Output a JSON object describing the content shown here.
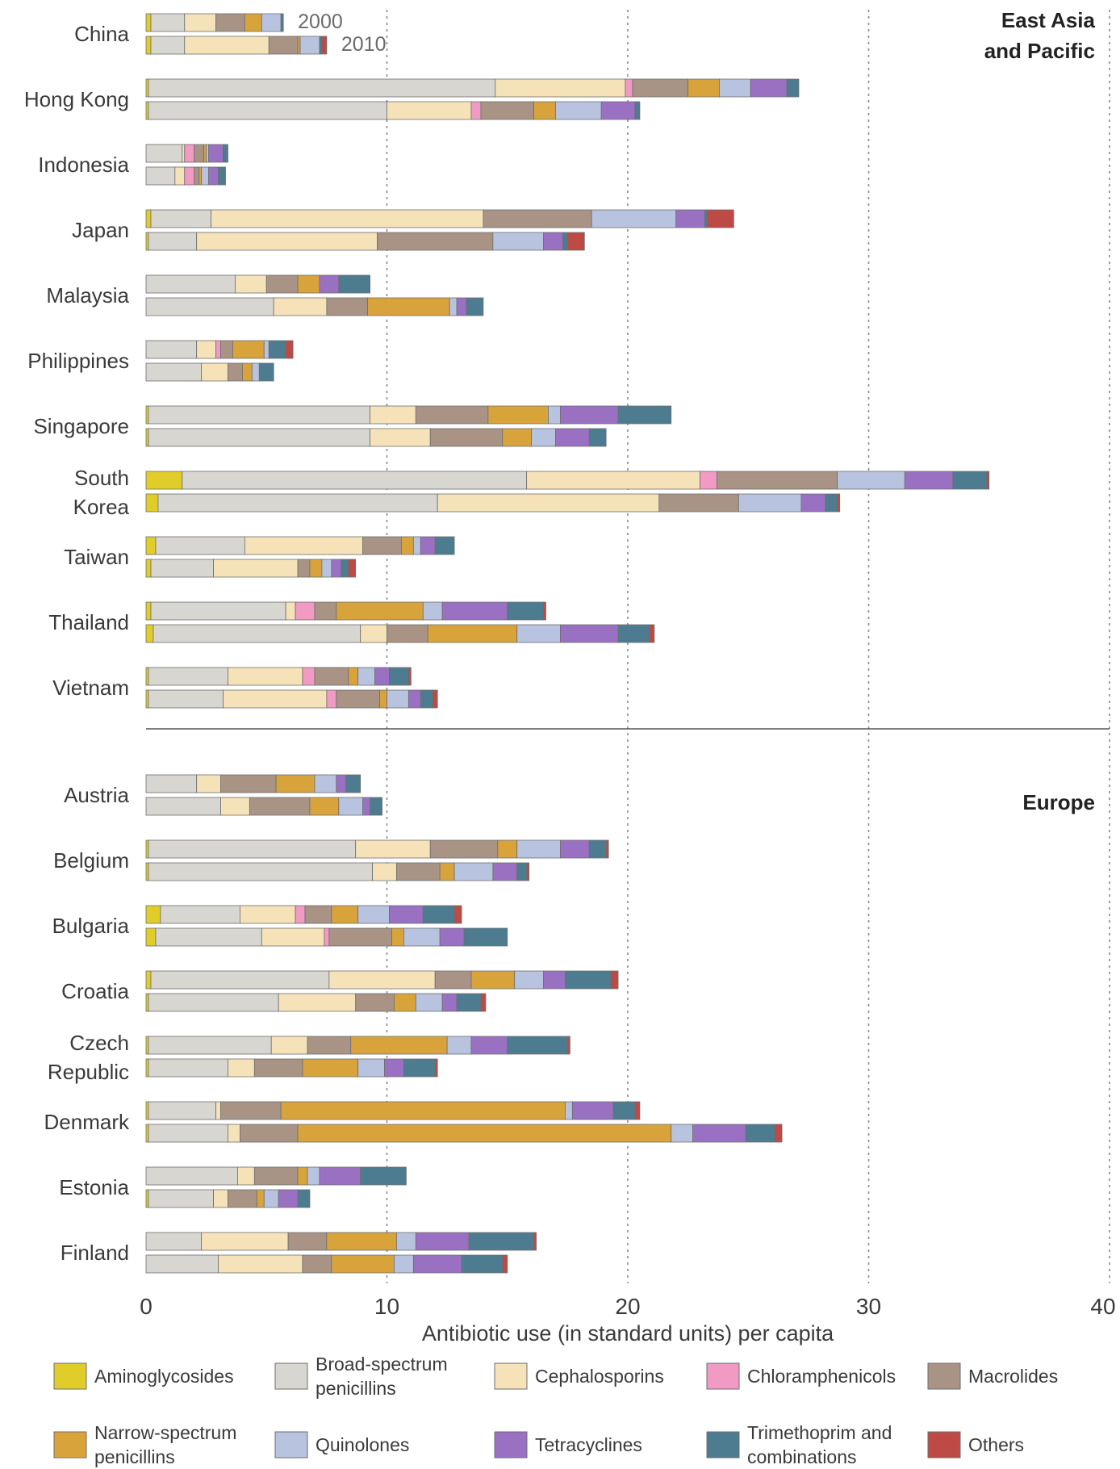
{
  "chart_data": {
    "type": "bar",
    "orientation": "horizontal",
    "stacked": true,
    "xlabel": "Antibiotic use (in standard units) per capita",
    "xlim": [
      0,
      40
    ],
    "xticks": [
      0,
      10,
      20,
      30,
      40
    ],
    "grid": "vertical dotted lines at 10, 20, 30, 40",
    "legend_position": "bottom",
    "year_labels": [
      "2000",
      "2010"
    ],
    "series": [
      {
        "name": "Aminoglycosides",
        "color": "#e0cd2a"
      },
      {
        "name": "Broad-spectrum penicillins",
        "color": "#d8d6d1"
      },
      {
        "name": "Cephalosporins",
        "color": "#f6e2b8"
      },
      {
        "name": "Chloramphenicols",
        "color": "#f19ac4"
      },
      {
        "name": "Macrolides",
        "color": "#a89385"
      },
      {
        "name": "Narrow-spectrum penicillins",
        "color": "#d9a33c"
      },
      {
        "name": "Quinolones",
        "color": "#b8c3df"
      },
      {
        "name": "Tetracyclines",
        "color": "#9a70c3"
      },
      {
        "name": "Trimethoprim and combinations",
        "color": "#4d7c90"
      },
      {
        "name": "Others",
        "color": "#bd4a44"
      }
    ],
    "groups": [
      {
        "region": "East Asia\nand Pacific",
        "countries": [
          {
            "name": "China",
            "bars": [
              [
                0.2,
                1.4,
                1.3,
                0,
                1.2,
                0.7,
                0.8,
                0,
                0.1,
                0
              ],
              [
                0.2,
                1.4,
                3.5,
                0,
                1.2,
                0.1,
                0.8,
                0,
                0.1,
                0.2
              ]
            ]
          },
          {
            "name": "Hong Kong",
            "bars": [
              [
                0.1,
                14.4,
                5.4,
                0.3,
                2.3,
                1.3,
                1.3,
                1.5,
                0.5,
                0
              ],
              [
                0.1,
                9.9,
                3.5,
                0.4,
                2.2,
                0.9,
                1.9,
                1.4,
                0.2,
                0
              ]
            ]
          },
          {
            "name": "Indonesia",
            "bars": [
              [
                0,
                1.5,
                0.1,
                0.4,
                0.4,
                0.1,
                0.1,
                0.6,
                0.2,
                0
              ],
              [
                0,
                1.2,
                0.4,
                0.4,
                0.2,
                0.1,
                0.3,
                0.4,
                0.3,
                0
              ]
            ]
          },
          {
            "name": "Japan",
            "bars": [
              [
                0.2,
                2.5,
                11.3,
                0,
                4.5,
                0,
                3.5,
                1.2,
                0.1,
                1.1
              ],
              [
                0.1,
                2.0,
                7.5,
                0,
                4.8,
                0,
                2.1,
                0.8,
                0.2,
                0.7
              ]
            ]
          },
          {
            "name": "Malaysia",
            "bars": [
              [
                0,
                3.7,
                1.3,
                0,
                1.3,
                0.9,
                0,
                0.8,
                1.3,
                0
              ],
              [
                0,
                5.3,
                2.2,
                0,
                1.7,
                3.4,
                0.3,
                0.4,
                0.7,
                0
              ]
            ]
          },
          {
            "name": "Philippines",
            "bars": [
              [
                0,
                2.1,
                0.8,
                0.2,
                0.5,
                1.3,
                0.2,
                0,
                0.7,
                0.3
              ],
              [
                0,
                2.3,
                1.1,
                0,
                0.6,
                0.4,
                0.3,
                0,
                0.6,
                0
              ]
            ]
          },
          {
            "name": "Singapore",
            "bars": [
              [
                0.1,
                9.2,
                1.9,
                0,
                3.0,
                2.5,
                0.5,
                2.4,
                2.2,
                0
              ],
              [
                0.1,
                9.2,
                2.5,
                0,
                3.0,
                1.2,
                1.0,
                1.4,
                0.7,
                0
              ]
            ]
          },
          {
            "name": "South\nKorea",
            "bars": [
              [
                1.5,
                14.3,
                7.2,
                0.7,
                5.0,
                0,
                2.8,
                2.0,
                1.4,
                0.1
              ],
              [
                0.5,
                11.6,
                9.2,
                0,
                3.3,
                0,
                2.6,
                1.0,
                0.5,
                0.1
              ]
            ]
          },
          {
            "name": "Taiwan",
            "bars": [
              [
                0.4,
                3.7,
                4.9,
                0,
                1.6,
                0.5,
                0.3,
                0.6,
                0.8,
                0
              ],
              [
                0.2,
                2.6,
                3.5,
                0,
                0.5,
                0.5,
                0.4,
                0.4,
                0.3,
                0.3
              ]
            ]
          },
          {
            "name": "Thailand",
            "bars": [
              [
                0.2,
                5.6,
                0.4,
                0.8,
                0.9,
                3.6,
                0.8,
                2.7,
                1.5,
                0.1
              ],
              [
                0.3,
                8.6,
                1.1,
                0,
                1.7,
                3.7,
                1.8,
                2.4,
                1.3,
                0.2
              ]
            ]
          },
          {
            "name": "Vietnam",
            "bars": [
              [
                0.1,
                3.3,
                3.1,
                0.5,
                1.4,
                0.4,
                0.7,
                0.6,
                0.8,
                0.1
              ],
              [
                0.1,
                3.1,
                4.3,
                0.4,
                1.8,
                0.3,
                0.9,
                0.5,
                0.5,
                0.2
              ]
            ]
          }
        ]
      },
      {
        "region": "Europe",
        "countries": [
          {
            "name": "Austria",
            "bars": [
              [
                0,
                2.1,
                1.0,
                0,
                2.3,
                1.6,
                0.9,
                0.4,
                0.6,
                0
              ],
              [
                0,
                3.1,
                1.2,
                0,
                2.5,
                1.2,
                1.0,
                0.3,
                0.5,
                0
              ]
            ]
          },
          {
            "name": "Belgium",
            "bars": [
              [
                0.1,
                8.6,
                3.1,
                0,
                2.8,
                0.8,
                1.8,
                1.2,
                0.7,
                0.1
              ],
              [
                0.1,
                9.3,
                1.0,
                0,
                1.8,
                0.6,
                1.6,
                1.0,
                0.4,
                0.1
              ]
            ]
          },
          {
            "name": "Bulgaria",
            "bars": [
              [
                0.6,
                3.3,
                2.3,
                0.4,
                1.1,
                1.1,
                1.3,
                1.4,
                1.3,
                0.3
              ],
              [
                0.4,
                4.4,
                2.6,
                0.2,
                2.6,
                0.5,
                1.5,
                1.0,
                1.8,
                0
              ]
            ]
          },
          {
            "name": "Croatia",
            "bars": [
              [
                0.2,
                7.4,
                4.4,
                0,
                1.5,
                1.8,
                1.2,
                0.9,
                1.9,
                0.3
              ],
              [
                0.1,
                5.4,
                3.2,
                0,
                1.6,
                0.9,
                1.1,
                0.6,
                1.0,
                0.2
              ]
            ]
          },
          {
            "name": "Czech\nRepublic",
            "bars": [
              [
                0.1,
                5.1,
                1.5,
                0,
                1.8,
                4.0,
                1.0,
                1.5,
                2.5,
                0.1
              ],
              [
                0.1,
                3.3,
                1.1,
                0,
                2.0,
                2.3,
                1.1,
                0.8,
                1.3,
                0.1
              ]
            ]
          },
          {
            "name": "Denmark",
            "bars": [
              [
                0.1,
                2.8,
                0.2,
                0,
                2.5,
                11.8,
                0.3,
                1.7,
                0.9,
                0.2
              ],
              [
                0.1,
                3.3,
                0.5,
                0,
                2.4,
                15.5,
                0.9,
                2.2,
                1.2,
                0.3
              ]
            ]
          },
          {
            "name": "Estonia",
            "bars": [
              [
                0,
                3.8,
                0.7,
                0,
                1.8,
                0.4,
                0.5,
                1.7,
                1.9,
                0
              ],
              [
                0.1,
                2.7,
                0.6,
                0,
                1.2,
                0.3,
                0.6,
                0.8,
                0.5,
                0
              ]
            ]
          },
          {
            "name": "Finland",
            "bars": [
              [
                0,
                2.3,
                3.6,
                0,
                1.6,
                2.9,
                0.8,
                2.2,
                2.7,
                0.1
              ],
              [
                0,
                3.0,
                3.5,
                0,
                1.2,
                2.6,
                0.8,
                2.0,
                1.7,
                0.2
              ]
            ]
          }
        ]
      }
    ]
  }
}
